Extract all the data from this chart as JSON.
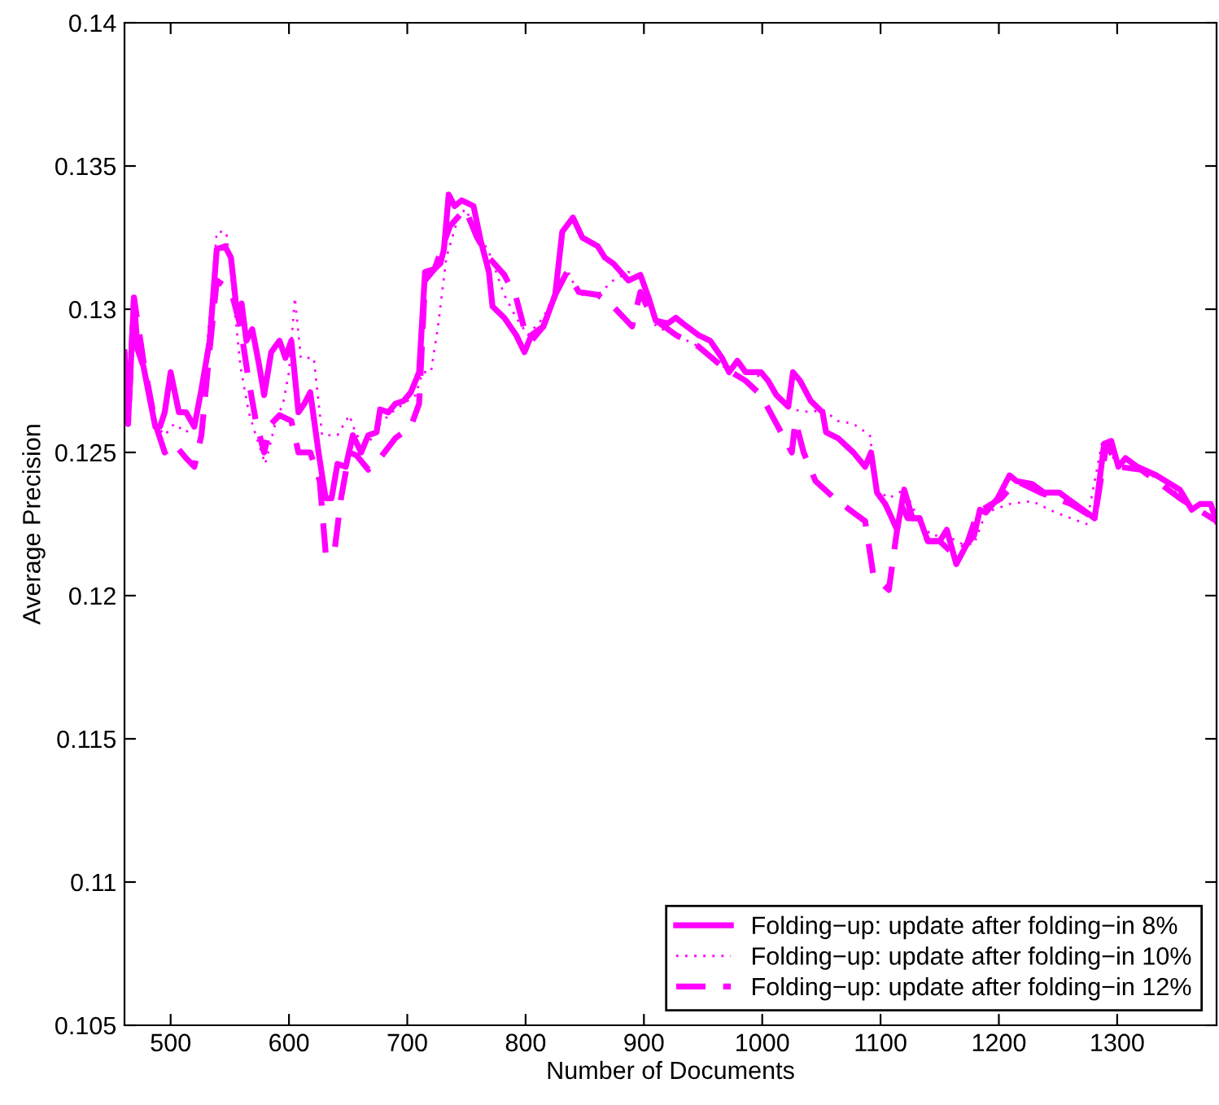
{
  "chart_data": {
    "type": "line",
    "xlabel": "Number of Documents",
    "ylabel": "Average Precision",
    "xlim": [
      461,
      1384
    ],
    "xticks": [
      500,
      600,
      700,
      800,
      900,
      1000,
      1100,
      1200,
      1300
    ],
    "ylim": [
      0.105,
      0.14
    ],
    "yticks": [
      0.105,
      0.11,
      0.115,
      0.12,
      0.125,
      0.13,
      0.135,
      0.14
    ],
    "grid": false,
    "legend": "bottom right",
    "marker": "none",
    "series": [
      {
        "name": "Folding−up: update after folding−in 8%",
        "color": "#ff00ff",
        "line_style": "solid",
        "x": [
          461,
          464,
          469,
          472,
          477,
          487,
          491,
          495,
          500,
          507,
          513,
          520,
          526,
          533,
          539,
          546,
          551,
          556,
          560,
          564,
          569,
          575,
          579,
          585,
          592,
          597,
          602,
          608,
          613,
          618,
          625,
          631,
          636,
          641,
          648,
          654,
          661,
          667,
          674,
          677,
          684,
          690,
          697,
          703,
          710,
          715,
          723,
          728,
          731,
          735,
          740,
          746,
          756,
          762,
          769,
          772,
          782,
          792,
          799,
          805,
          815,
          825,
          831,
          840,
          848,
          861,
          867,
          874,
          887,
          897,
          904,
          910,
          920,
          927,
          933,
          946,
          956,
          966,
          972,
          979,
          986,
          999,
          1005,
          1012,
          1022,
          1026,
          1032,
          1041,
          1051,
          1054,
          1064,
          1077,
          1087,
          1092,
          1097,
          1104,
          1114,
          1120,
          1127,
          1133,
          1140,
          1150,
          1156,
          1164,
          1173,
          1179,
          1184,
          1189,
          1199,
          1209,
          1215,
          1228,
          1238,
          1251,
          1261,
          1281,
          1289,
          1295,
          1301,
          1307,
          1317,
          1333,
          1353,
          1363,
          1370,
          1379,
          1384
        ],
        "values": [
          0.1285,
          0.126,
          0.1304,
          0.1286,
          0.128,
          0.1259,
          0.1259,
          0.1264,
          0.1278,
          0.1264,
          0.1264,
          0.1259,
          0.1272,
          0.1289,
          0.1321,
          0.1322,
          0.1318,
          0.1299,
          0.1302,
          0.1289,
          0.1293,
          0.128,
          0.127,
          0.1285,
          0.1289,
          0.1283,
          0.1289,
          0.1264,
          0.1267,
          0.1271,
          0.125,
          0.1234,
          0.1234,
          0.1246,
          0.1245,
          0.1256,
          0.125,
          0.1256,
          0.1257,
          0.1265,
          0.1264,
          0.1267,
          0.1268,
          0.1271,
          0.1278,
          0.1313,
          0.1314,
          0.1316,
          0.1321,
          0.134,
          0.1336,
          0.1338,
          0.1336,
          0.1324,
          0.1313,
          0.1301,
          0.1297,
          0.1291,
          0.1285,
          0.1291,
          0.1294,
          0.1305,
          0.1327,
          0.1332,
          0.1325,
          0.1322,
          0.1318,
          0.1316,
          0.131,
          0.1312,
          0.1304,
          0.1296,
          0.1295,
          0.1297,
          0.1295,
          0.1291,
          0.1289,
          0.1283,
          0.1278,
          0.1282,
          0.1278,
          0.1278,
          0.1275,
          0.127,
          0.1266,
          0.1278,
          0.1275,
          0.1268,
          0.1264,
          0.1257,
          0.1255,
          0.125,
          0.1245,
          0.125,
          0.1236,
          0.1232,
          0.1223,
          0.1237,
          0.1227,
          0.1227,
          0.1219,
          0.1219,
          0.1223,
          0.1211,
          0.1218,
          0.1221,
          0.123,
          0.1229,
          0.1234,
          0.1242,
          0.124,
          0.1239,
          0.1236,
          0.1236,
          0.1233,
          0.1227,
          0.1253,
          0.1254,
          0.1245,
          0.1248,
          0.1245,
          0.1242,
          0.1237,
          0.123,
          0.1232,
          0.1232,
          0.1226
        ]
      },
      {
        "name": "Folding−up: update after folding−in 10%",
        "color": "#ff00ff",
        "line_style": "dotted",
        "x": [
          461,
          464,
          469,
          474,
          487,
          495,
          503,
          513,
          520,
          530,
          539,
          547,
          552,
          559,
          566,
          572,
          580,
          589,
          595,
          600,
          605,
          610,
          615,
          621,
          628,
          635,
          641,
          651,
          657,
          667,
          677,
          687,
          697,
          707,
          713,
          720,
          726,
          733,
          743,
          749,
          759,
          769,
          782,
          792,
          802,
          815,
          825,
          835,
          845,
          861,
          874,
          887,
          900,
          910,
          927,
          946,
          966,
          986,
          1005,
          1012,
          1025,
          1041,
          1051,
          1064,
          1077,
          1091,
          1097,
          1107,
          1120,
          1133,
          1143,
          1156,
          1169,
          1179,
          1189,
          1209,
          1228,
          1248,
          1274,
          1287,
          1301,
          1317,
          1340,
          1360,
          1384
        ],
        "values": [
          0.1285,
          0.126,
          0.1304,
          0.1283,
          0.126,
          0.1256,
          0.126,
          0.1257,
          0.126,
          0.1283,
          0.1327,
          0.1327,
          0.1308,
          0.128,
          0.1264,
          0.1256,
          0.1246,
          0.1261,
          0.1267,
          0.1278,
          0.1304,
          0.1283,
          0.1283,
          0.1283,
          0.1256,
          0.1256,
          0.1256,
          0.1263,
          0.1256,
          0.1253,
          0.126,
          0.1264,
          0.1267,
          0.127,
          0.1278,
          0.1278,
          0.1294,
          0.1318,
          0.1332,
          0.1335,
          0.1327,
          0.132,
          0.1305,
          0.1297,
          0.1291,
          0.1297,
          0.1306,
          0.1314,
          0.1305,
          0.1305,
          0.131,
          0.1313,
          0.131,
          0.1294,
          0.1291,
          0.1287,
          0.128,
          0.1279,
          0.1275,
          0.127,
          0.1265,
          0.1264,
          0.1265,
          0.1261,
          0.126,
          0.1256,
          0.1237,
          0.1234,
          0.1237,
          0.1226,
          0.1221,
          0.1221,
          0.1218,
          0.1218,
          0.1229,
          0.1232,
          0.1233,
          0.1229,
          0.1225,
          0.1253,
          0.1246,
          0.1244,
          0.124,
          0.1232,
          0.1226
        ]
      },
      {
        "name": "Folding−up: update after folding−in 12%",
        "color": "#ff00ff",
        "line_style": "dashed",
        "x": [
          461,
          464,
          469,
          477,
          487,
          495,
          503,
          513,
          520,
          526,
          533,
          539,
          546,
          552,
          559,
          566,
          572,
          579,
          585,
          592,
          602,
          608,
          618,
          626,
          631,
          638,
          644,
          651,
          657,
          667,
          677,
          690,
          703,
          710,
          715,
          723,
          736,
          749,
          759,
          769,
          782,
          792,
          799,
          805,
          815,
          825,
          835,
          845,
          861,
          874,
          890,
          897,
          907,
          927,
          946,
          966,
          986,
          999,
          1012,
          1025,
          1028,
          1035,
          1045,
          1061,
          1077,
          1087,
          1094,
          1107,
          1117,
          1123,
          1133,
          1140,
          1150,
          1163,
          1173,
          1182,
          1202,
          1215,
          1235,
          1261,
          1281,
          1291,
          1301,
          1320,
          1353,
          1384
        ],
        "values": [
          0.1285,
          0.126,
          0.1304,
          0.1282,
          0.126,
          0.125,
          0.1253,
          0.1248,
          0.1245,
          0.1256,
          0.1286,
          0.131,
          0.1308,
          0.1305,
          0.1294,
          0.1275,
          0.1261,
          0.125,
          0.126,
          0.1263,
          0.1261,
          0.125,
          0.125,
          0.124,
          0.1215,
          0.1214,
          0.1234,
          0.125,
          0.1249,
          0.1244,
          0.1248,
          0.1255,
          0.1259,
          0.1267,
          0.131,
          0.1314,
          0.1329,
          0.1335,
          0.1325,
          0.1318,
          0.1312,
          0.1304,
          0.1293,
          0.1289,
          0.1294,
          0.1305,
          0.1313,
          0.1306,
          0.1305,
          0.1301,
          0.1294,
          0.1306,
          0.1297,
          0.1291,
          0.1287,
          0.128,
          0.1275,
          0.127,
          0.126,
          0.125,
          0.1261,
          0.125,
          0.124,
          0.1234,
          0.1229,
          0.1226,
          0.1207,
          0.1202,
          0.1232,
          0.1227,
          0.1227,
          0.1219,
          0.1219,
          0.1214,
          0.1218,
          0.1229,
          0.1234,
          0.124,
          0.1236,
          0.1232,
          0.1227,
          0.1253,
          0.1245,
          0.1244,
          0.1234,
          0.1226
        ]
      }
    ]
  }
}
